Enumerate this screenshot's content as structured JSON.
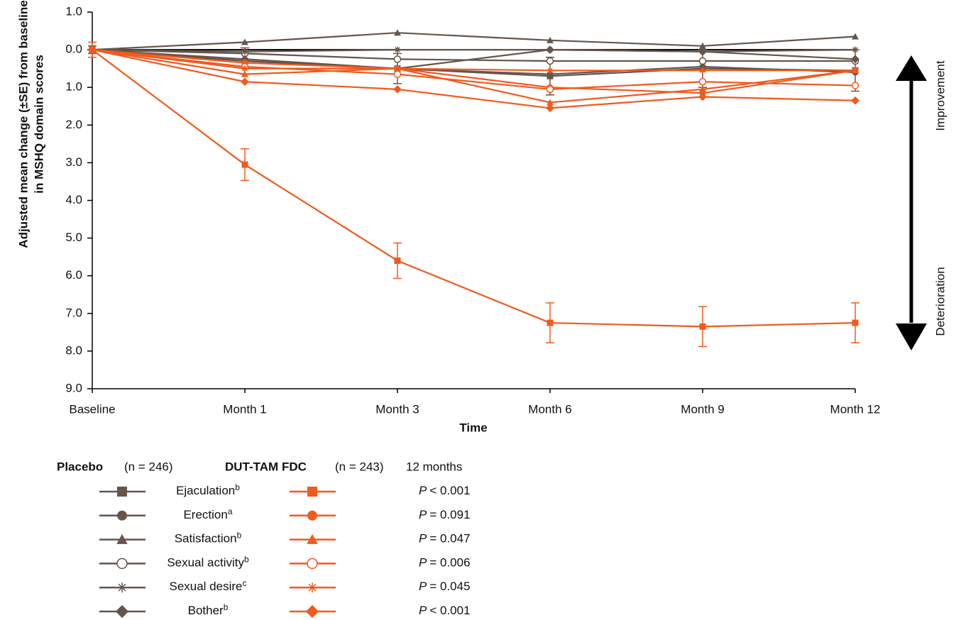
{
  "chart_data": {
    "type": "line",
    "y_label": [
      "Adjusted mean change (±SE) from baseline",
      "in MSHQ domain scores"
    ],
    "x_label": "Time",
    "categories": [
      "Baseline",
      "Month 1",
      "Month 3",
      "Month 6",
      "Month 9",
      "Month 12"
    ],
    "ylim": [
      -1,
      9
    ],
    "y_direction": "down",
    "yticks": [
      {
        "value": -1,
        "label": "1.0"
      },
      {
        "value": 0,
        "label": "0.0"
      },
      {
        "value": 1,
        "label": "1.0"
      },
      {
        "value": 2,
        "label": "2.0"
      },
      {
        "value": 3,
        "label": "3.0"
      },
      {
        "value": 4,
        "label": "4.0"
      },
      {
        "value": 5,
        "label": "5.0"
      },
      {
        "value": 6,
        "label": "6.0"
      },
      {
        "value": 7,
        "label": "7.0"
      },
      {
        "value": 8,
        "label": "8.0"
      },
      {
        "value": 9,
        "label": "9.0"
      }
    ],
    "zero_line": true,
    "series": [
      {
        "name": "Ejaculation",
        "group": "Placebo",
        "marker": "square",
        "color": "#65554b",
        "values": [
          0,
          0.3,
          0.5,
          0.7,
          0.5,
          0.55
        ],
        "errors": [
          0.1,
          0.35,
          0.4,
          0.5,
          0.5,
          0.55
        ]
      },
      {
        "name": "Erection",
        "group": "Placebo",
        "marker": "circle",
        "color": "#65554b",
        "values": [
          0,
          0.3,
          0.5,
          0.65,
          0.45,
          0.6
        ]
      },
      {
        "name": "Satisfaction",
        "group": "Placebo",
        "marker": "triangle",
        "color": "#65554b",
        "values": [
          0,
          -0.2,
          -0.45,
          -0.25,
          -0.1,
          -0.35
        ]
      },
      {
        "name": "Sexual activity",
        "group": "Placebo",
        "marker": "open-circle",
        "color": "#65554b",
        "values": [
          0,
          0.1,
          0.25,
          0.3,
          0.3,
          0.3
        ]
      },
      {
        "name": "Sexual desire",
        "group": "Placebo",
        "marker": "star",
        "color": "#65554b",
        "values": [
          0,
          0.05,
          0.0,
          0.0,
          0.05,
          0.0
        ]
      },
      {
        "name": "Bother",
        "group": "Placebo",
        "marker": "diamond",
        "color": "#65554b",
        "values": [
          0,
          0.25,
          0.5,
          0.0,
          0.05,
          0.25
        ]
      },
      {
        "name": "Ejaculation",
        "group": "DUT-TAM FDC",
        "marker": "square",
        "color": "#f15a1d",
        "values": [
          0,
          3.05,
          5.6,
          7.25,
          7.35,
          7.25
        ],
        "errors": [
          0.2,
          0.42,
          0.47,
          0.53,
          0.53,
          0.53
        ]
      },
      {
        "name": "Erection",
        "group": "DUT-TAM FDC",
        "marker": "circle",
        "color": "#f15a1d",
        "values": [
          0,
          0.35,
          0.5,
          1.0,
          1.15,
          0.55
        ]
      },
      {
        "name": "Satisfaction",
        "group": "DUT-TAM FDC",
        "marker": "triangle",
        "color": "#f15a1d",
        "values": [
          0,
          0.65,
          0.5,
          1.4,
          1.05,
          0.55
        ]
      },
      {
        "name": "Sexual activity",
        "group": "DUT-TAM FDC",
        "marker": "open-circle",
        "color": "#f15a1d",
        "values": [
          0,
          0.45,
          0.65,
          1.05,
          0.85,
          0.95
        ]
      },
      {
        "name": "Sexual desire",
        "group": "DUT-TAM FDC",
        "marker": "star",
        "color": "#f15a1d",
        "values": [
          0,
          0.5,
          0.5,
          0.55,
          0.55,
          0.55
        ]
      },
      {
        "name": "Bother",
        "group": "DUT-TAM FDC",
        "marker": "diamond",
        "color": "#f15a1d",
        "values": [
          0,
          0.85,
          1.05,
          1.55,
          1.25,
          1.35
        ]
      }
    ],
    "legend": {
      "placebo_title": "Placebo",
      "placebo_n": "(n = 246)",
      "active_title": "DUT-TAM FDC",
      "active_n": "(n = 243)",
      "period": "12 months",
      "footnotes": [
        "b",
        "a",
        "b",
        "b",
        "c",
        "b"
      ],
      "p_symbol": "P",
      "p_values": [
        "< 0.001",
        "= 0.091",
        "= 0.047",
        "= 0.006",
        "= 0.045",
        "< 0.001"
      ]
    },
    "annotations": {
      "up": "Improvement",
      "down": "Deterioration"
    }
  }
}
